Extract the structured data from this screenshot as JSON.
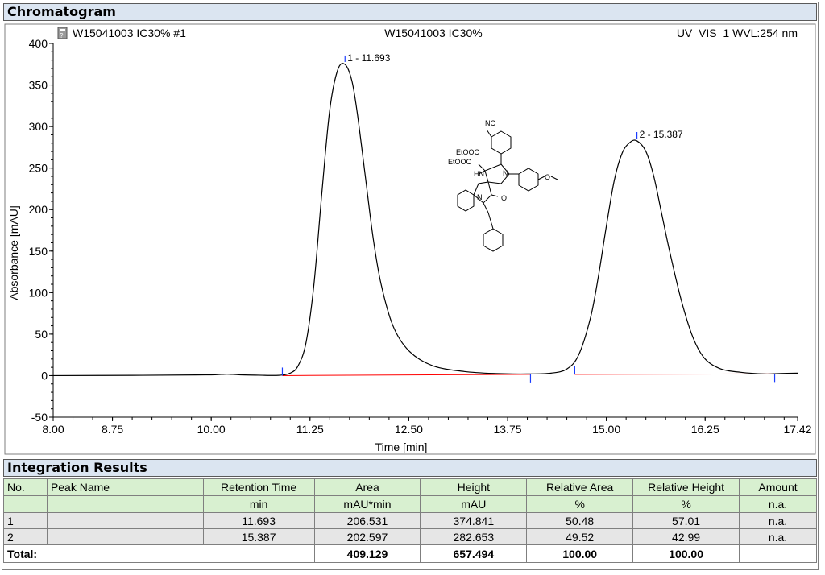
{
  "chromatogram": {
    "section_title": "Chromatogram",
    "sample_label": "W15041003 IC30% #1",
    "center_label": "W15041003 IC30%",
    "detector_label": "UV_VIS_1 WVL:254 nm",
    "icon": "document-icon"
  },
  "chart_data": {
    "type": "line",
    "title": "W15041003 IC30%",
    "xlabel": "Time [min]",
    "ylabel": "Absorbance [mAU]",
    "xlim": [
      8.0,
      17.42
    ],
    "ylim": [
      -50,
      400
    ],
    "x_ticks": [
      "8.00",
      "8.75",
      "10.00",
      "11.25",
      "12.50",
      "13.75",
      "15.00",
      "16.25",
      "17.42"
    ],
    "x_tick_values": [
      8.0,
      8.75,
      10.0,
      11.25,
      12.5,
      13.75,
      15.0,
      16.25,
      17.42
    ],
    "y_ticks": [
      "400",
      "350",
      "300",
      "250",
      "200",
      "150",
      "100",
      "50",
      "0",
      "-50"
    ],
    "y_tick_values": [
      400,
      350,
      300,
      250,
      200,
      150,
      100,
      50,
      0,
      -50
    ],
    "series": [
      {
        "color": "#000000",
        "x": [
          8.0,
          9.0,
          9.8,
          10.05,
          10.2,
          10.35,
          10.6,
          10.85,
          11.0,
          11.1,
          11.2,
          11.3,
          11.4,
          11.5,
          11.6,
          11.693,
          11.78,
          11.85,
          11.95,
          12.05,
          12.15,
          12.3,
          12.5,
          12.8,
          13.2,
          13.6,
          14.0,
          14.3,
          14.5,
          14.65,
          14.8,
          14.9,
          15.0,
          15.1,
          15.2,
          15.3,
          15.387,
          15.5,
          15.6,
          15.7,
          15.8,
          15.95,
          16.1,
          16.25,
          16.45,
          16.7,
          17.0,
          17.2,
          17.42
        ],
        "y": [
          0,
          0.3,
          0.8,
          1.0,
          1.8,
          1.0,
          0.5,
          0.3,
          3,
          12,
          40,
          110,
          220,
          320,
          368,
          374.8,
          355,
          315,
          240,
          165,
          110,
          60,
          30,
          12,
          5,
          2.5,
          2,
          3,
          8,
          25,
          70,
          120,
          180,
          235,
          268,
          281,
          282.7,
          270,
          240,
          195,
          150,
          90,
          45,
          20,
          8,
          4,
          2,
          2.5,
          3
        ]
      }
    ],
    "baselines": [
      {
        "color": "#ff0000",
        "x": [
          10.9,
          14.04
        ],
        "y": [
          0,
          1.5
        ]
      },
      {
        "color": "#ff0000",
        "x": [
          14.6,
          17.13
        ],
        "y": [
          1.5,
          2.0
        ]
      }
    ],
    "peak_markers": [
      {
        "label": "1 - 11.693",
        "x": 11.693,
        "y": 374.841
      },
      {
        "label": "2 - 15.387",
        "x": 15.387,
        "y": 282.653
      }
    ],
    "integration_ticks": [
      {
        "x": 10.9,
        "y": 0,
        "dir": "up"
      },
      {
        "x": 14.04,
        "y": 1.5,
        "dir": "down"
      },
      {
        "x": 14.6,
        "y": 1.5,
        "dir": "up"
      },
      {
        "x": 17.13,
        "y": 2.0,
        "dir": "down"
      }
    ],
    "structure_labels": [
      "NC",
      "EtOOC",
      "EtOOC",
      "HN",
      "N",
      "N",
      "O",
      "O"
    ]
  },
  "integration": {
    "section_title": "Integration Results",
    "headers": {
      "no": "No.",
      "peak_name": "Peak Name",
      "rt": "Retention Time",
      "area": "Area",
      "height": "Height",
      "rel_area": "Relative Area",
      "rel_height": "Relative Height",
      "amount": "Amount"
    },
    "units": {
      "rt": "min",
      "area": "mAU*min",
      "height": "mAU",
      "rel_area": "%",
      "rel_height": "%",
      "amount": "n.a."
    },
    "rows": [
      {
        "no": "1",
        "peak_name": "",
        "rt": "11.693",
        "area": "206.531",
        "height": "374.841",
        "rel_area": "50.48",
        "rel_height": "57.01",
        "amount": "n.a."
      },
      {
        "no": "2",
        "peak_name": "",
        "rt": "15.387",
        "area": "202.597",
        "height": "282.653",
        "rel_area": "49.52",
        "rel_height": "42.99",
        "amount": "n.a."
      }
    ],
    "total": {
      "label": "Total:",
      "area": "409.129",
      "height": "657.494",
      "rel_area": "100.00",
      "rel_height": "100.00"
    }
  }
}
